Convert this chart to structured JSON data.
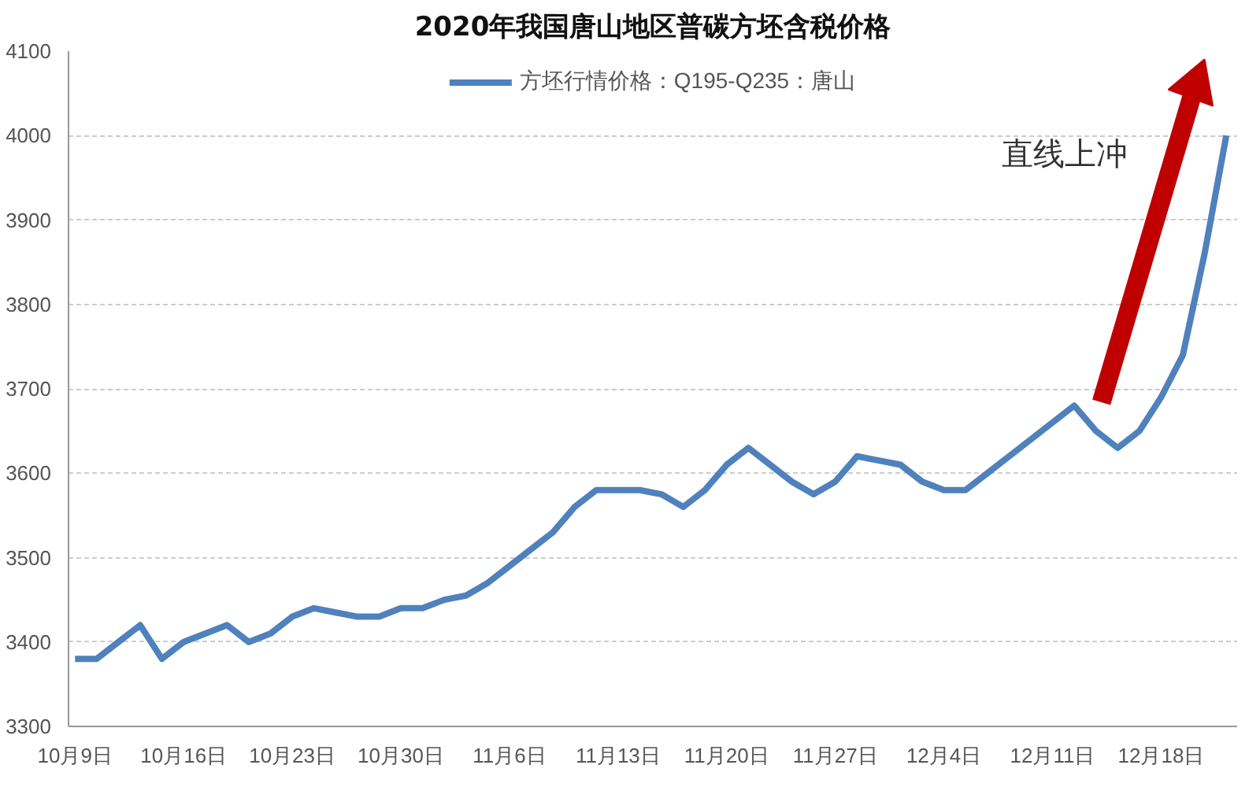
{
  "chart_data": {
    "type": "line",
    "title": "2020年我国唐山地区普碳方坯含税价格",
    "categories": [
      "10月9日",
      null,
      null,
      null,
      null,
      "10月16日",
      null,
      null,
      null,
      null,
      "10月23日",
      null,
      null,
      null,
      null,
      "10月30日",
      null,
      null,
      null,
      null,
      "11月6日",
      null,
      null,
      null,
      null,
      "11月13日",
      null,
      null,
      null,
      null,
      "11月20日",
      null,
      null,
      null,
      null,
      "11月27日",
      null,
      null,
      null,
      null,
      "12月4日",
      null,
      null,
      null,
      null,
      "12月11日",
      null,
      null,
      null,
      null,
      "12月18日",
      null,
      null,
      null
    ],
    "series": [
      {
        "name": "方坯行情价格：Q195-Q235：唐山",
        "color": "#4f81bd",
        "values": [
          3380,
          3380,
          3400,
          3420,
          3380,
          3400,
          3410,
          3420,
          3400,
          3410,
          3430,
          3440,
          3435,
          3430,
          3430,
          3440,
          3440,
          3450,
          3455,
          3470,
          3490,
          3510,
          3530,
          3560,
          3580,
          3580,
          3580,
          3575,
          3560,
          3580,
          3610,
          3630,
          3610,
          3590,
          3575,
          3590,
          3620,
          3615,
          3610,
          3590,
          3580,
          3580,
          3600,
          3620,
          3640,
          3660,
          3680,
          3650,
          3630,
          3650,
          3690,
          3740,
          3860,
          4000
        ]
      }
    ],
    "ylim": [
      3300,
      4100
    ],
    "yticks": [
      3300,
      3400,
      3500,
      3600,
      3700,
      3800,
      3900,
      4000,
      4100
    ],
    "grid": "y",
    "legend": "top",
    "marker": "none",
    "line_style": "solid",
    "annotations": [
      "直线上冲"
    ]
  }
}
